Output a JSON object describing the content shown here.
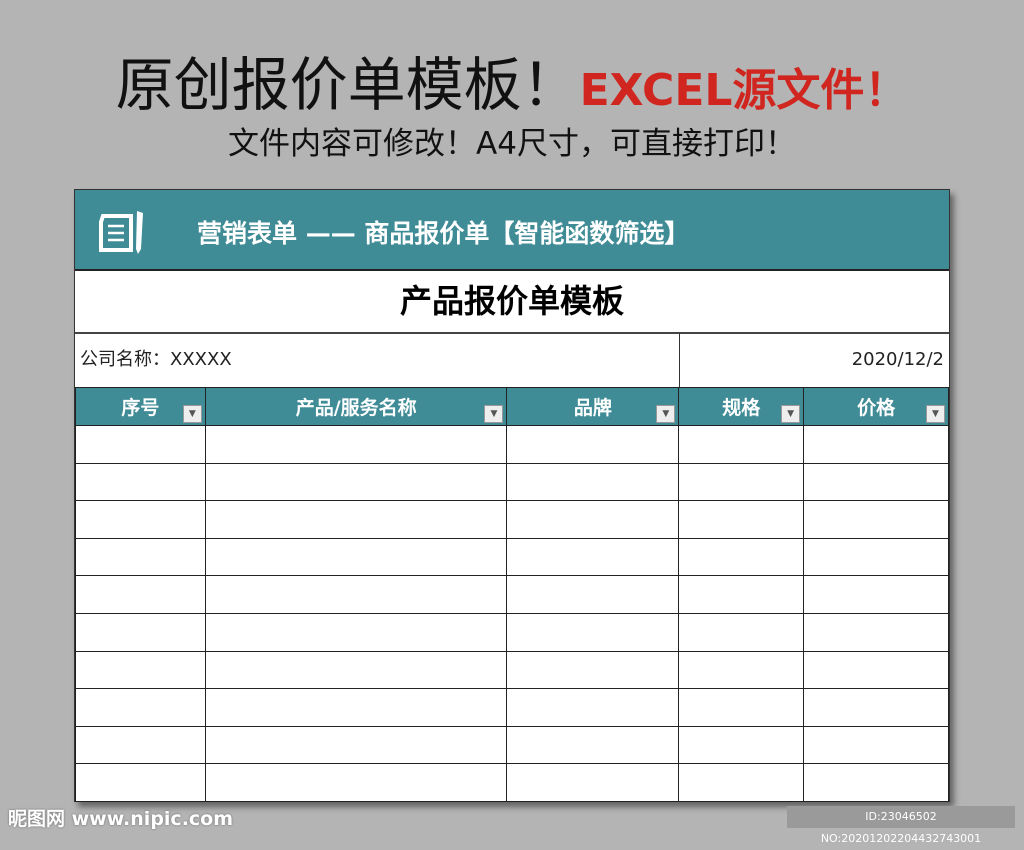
{
  "headline": {
    "main": "原创报价单模板！",
    "accent": "EXCEL源文件！",
    "sub": "文件内容可修改！A4尺寸，可直接打印！"
  },
  "sheet": {
    "banner": "营销表单 —— 商品报价单【智能函数筛选】",
    "title": "产品报价单模板",
    "company": "公司名称：XXXXX",
    "date": "2020/12/2",
    "columns": [
      "序号",
      "产品/服务名称",
      "品牌",
      "规格",
      "价格"
    ],
    "header_color": "#3f8b96"
  },
  "watermark": {
    "site": "昵图网 www.nipic.com",
    "id": "ID:23046502 NO:20201202204432743001"
  }
}
